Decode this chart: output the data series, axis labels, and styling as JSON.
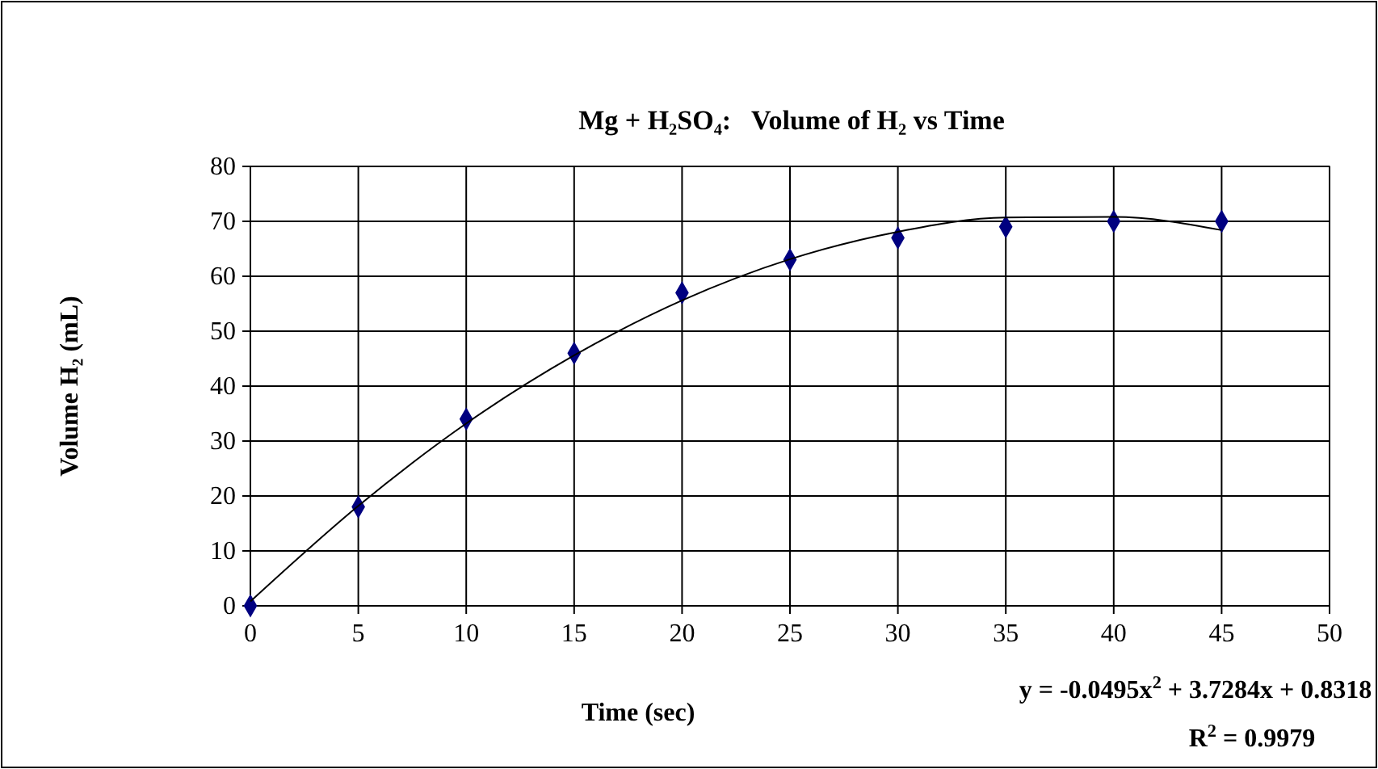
{
  "chart_data": {
    "type": "scatter",
    "title": "Mg + H₂SO₄:   Volume of H₂ vs Time",
    "xlabel": "Time (sec)",
    "ylabel": "Volume H₂ (mL)",
    "x": [
      0,
      5,
      10,
      15,
      20,
      25,
      30,
      35,
      40,
      45
    ],
    "series": [
      {
        "color": "#000080",
        "marker": "diamond",
        "values": [
          0,
          18,
          34,
          46,
          57,
          63,
          67,
          69,
          70,
          70
        ]
      },
      {
        "type": "line",
        "color": "#000000",
        "marker": "none",
        "line_style": "solid",
        "x": [
          0,
          5,
          10,
          15,
          20,
          25,
          30,
          35,
          40,
          45
        ],
        "values": [
          0.8,
          18.2,
          33.2,
          45.6,
          55.6,
          63.1,
          68.1,
          70.7,
          70.8,
          68.4
        ]
      }
    ],
    "xlim": [
      0,
      50
    ],
    "xticks": [
      0,
      5,
      10,
      15,
      20,
      25,
      30,
      35,
      40,
      45,
      50
    ],
    "ylim": [
      0,
      80
    ],
    "yticks": [
      0,
      10,
      20,
      30,
      40,
      50,
      60,
      70,
      80
    ],
    "grid": true,
    "annotations": [
      "y = -0.0495x$^{2}$ + 3.7284x + 0.8318",
      "R$^{2}$ = 0.9979"
    ]
  }
}
